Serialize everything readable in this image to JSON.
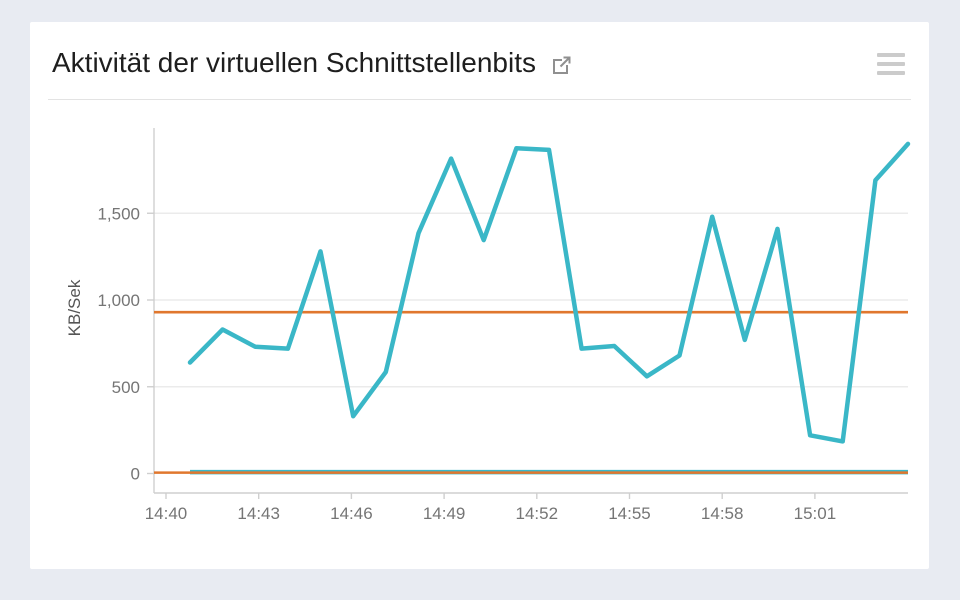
{
  "page": {
    "background_color": "#e8ebf2",
    "card_background_color": "#ffffff"
  },
  "header": {
    "title": "Aktivität der virtuellen Schnittstellenbits",
    "external_link_icon": "external-link-icon",
    "menu_icon": "hamburger-menu-icon"
  },
  "colors": {
    "teal_series": "#3ab7c7",
    "orange_series": "#e0772e",
    "gridline": "#ebebeb",
    "axis_line": "#cfcfcf",
    "tick_text": "#757575",
    "axis_title_text": "#555555",
    "title_text": "#1e1e1e",
    "icon_gray": "#909090",
    "menu_icon_gray": "#cbcbcb"
  },
  "chart_data": {
    "type": "line",
    "title": "Aktivität der virtuellen Schnittstellenbits",
    "xlabel": "",
    "ylabel": "KB/Sek",
    "ylim": [
      0,
      1990
    ],
    "grid": "horizontal-only",
    "legend": "none",
    "x": [
      "14:41",
      "14:42",
      "14:43",
      "14:44",
      "14:45",
      "14:46",
      "14:47",
      "14:48",
      "14:49",
      "14:50",
      "14:51",
      "14:52",
      "14:53",
      "14:54",
      "14:55",
      "14:56",
      "14:57",
      "14:58",
      "14:59",
      "15:00",
      "15:01",
      "15:02",
      "15:03"
    ],
    "series": [
      {
        "name": "teal-volatile-line",
        "color": "#3ab7c7",
        "values": [
          640,
          830,
          730,
          720,
          1280,
          330,
          585,
          1385,
          1815,
          1345,
          1875,
          1865,
          720,
          735,
          560,
          680,
          1480,
          770,
          1410,
          220,
          185,
          1690,
          1900
        ]
      },
      {
        "name": "orange-constant-upper-line",
        "color": "#e0772e",
        "constant": 930,
        "from_axis": true
      },
      {
        "name": "teal-near-zero-line",
        "color": "#3ab7c7",
        "constant": 8,
        "from_axis": false
      },
      {
        "name": "orange-near-zero-line",
        "color": "#e0772e",
        "constant": 5,
        "from_axis": true
      }
    ],
    "x_ticks": [
      {
        "label": "14:40",
        "minutes_from_start": 0
      },
      {
        "label": "14:43",
        "minutes_from_start": 3
      },
      {
        "label": "14:46",
        "minutes_from_start": 6
      },
      {
        "label": "14:49",
        "minutes_from_start": 9
      },
      {
        "label": "14:52",
        "minutes_from_start": 12
      },
      {
        "label": "14:55",
        "minutes_from_start": 15
      },
      {
        "label": "14:58",
        "minutes_from_start": 18
      },
      {
        "label": "15:01",
        "minutes_from_start": 21
      }
    ],
    "y_ticks": [
      {
        "label": "0",
        "value": 0
      },
      {
        "label": "500",
        "value": 500
      },
      {
        "label": "1,000",
        "value": 1000
      },
      {
        "label": "1,500",
        "value": 1500
      }
    ]
  }
}
